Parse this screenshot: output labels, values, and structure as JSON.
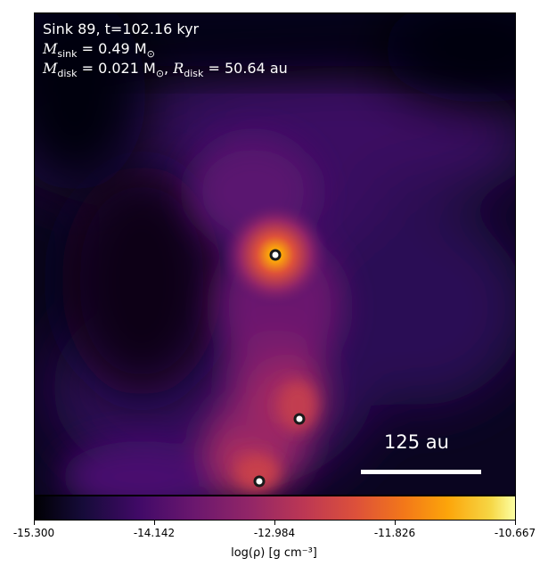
{
  "annotation": {
    "line1": "Sink 89, t=102.16 kyr",
    "msink_label": "M",
    "msink_sub": "sink",
    "msink_value": " = 0.49 M",
    "msink_sun": "⊙",
    "mdisk_label": "M",
    "mdisk_sub": "disk",
    "mdisk_value": " = 0.021 M",
    "mdisk_sun": "⊙",
    "rdisk_sep": ", ",
    "rdisk_label": "R",
    "rdisk_sub": "disk",
    "rdisk_value": " = 50.64 au"
  },
  "scalebar": {
    "label": "125 au"
  },
  "colorbar": {
    "colormap": "inferno",
    "ticks": [
      "-15.300",
      "-14.142",
      "-12.984",
      "-11.826",
      "-10.667"
    ],
    "label": "log(ρ) [g cm⁻³]"
  },
  "sinks": [
    {
      "name": "central-sink",
      "label": ""
    },
    {
      "name": "companion-sink",
      "label": ""
    },
    {
      "name": "lower-sink",
      "label": ""
    }
  ]
}
